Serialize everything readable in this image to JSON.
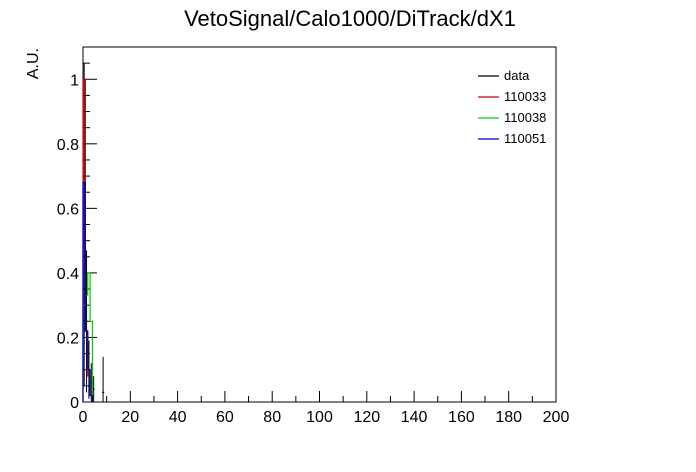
{
  "chart_data": {
    "type": "line",
    "title": "VetoSignal/Calo1000/DiTrack/dX1",
    "xlabel": "",
    "ylabel": "A.U.",
    "xlim": [
      0,
      200
    ],
    "ylim": [
      0,
      1.1
    ],
    "x_ticks": [
      "0",
      "20",
      "40",
      "60",
      "80",
      "100",
      "120",
      "140",
      "160",
      "180",
      "200"
    ],
    "y_ticks": [
      "0",
      "0.2",
      "0.4",
      "0.6",
      "0.8",
      "1"
    ],
    "grid": false,
    "legend_position": "top-right",
    "bin_width": 1,
    "series": [
      {
        "name": "data",
        "color": "#000000",
        "style": "points-with-errors",
        "x": [
          0.5,
          1.5,
          2.5,
          3.5,
          4.5,
          8.5
        ],
        "y": [
          0.55,
          0.25,
          0.1,
          0.06,
          0.04,
          0.03
        ],
        "yerr": [
          0.5,
          0.22,
          0.09,
          0.06,
          0.04,
          0.11
        ]
      },
      {
        "name": "110033",
        "color": "#cc0000",
        "style": "histogram",
        "x": [
          0.5,
          1.5,
          2.5,
          3.5
        ],
        "y": [
          1.0,
          0.22,
          0.08,
          0.02
        ]
      },
      {
        "name": "110038",
        "color": "#00cc00",
        "style": "histogram",
        "x": [
          0.5,
          1.5,
          2.5,
          3.5
        ],
        "y": [
          0.3,
          0.33,
          0.4,
          0.25
        ]
      },
      {
        "name": "110051",
        "color": "#0000cc",
        "style": "histogram",
        "x": [
          0.5,
          1.5,
          2.5,
          3.5
        ],
        "y": [
          0.68,
          0.22,
          0.1,
          0.02
        ]
      }
    ]
  }
}
